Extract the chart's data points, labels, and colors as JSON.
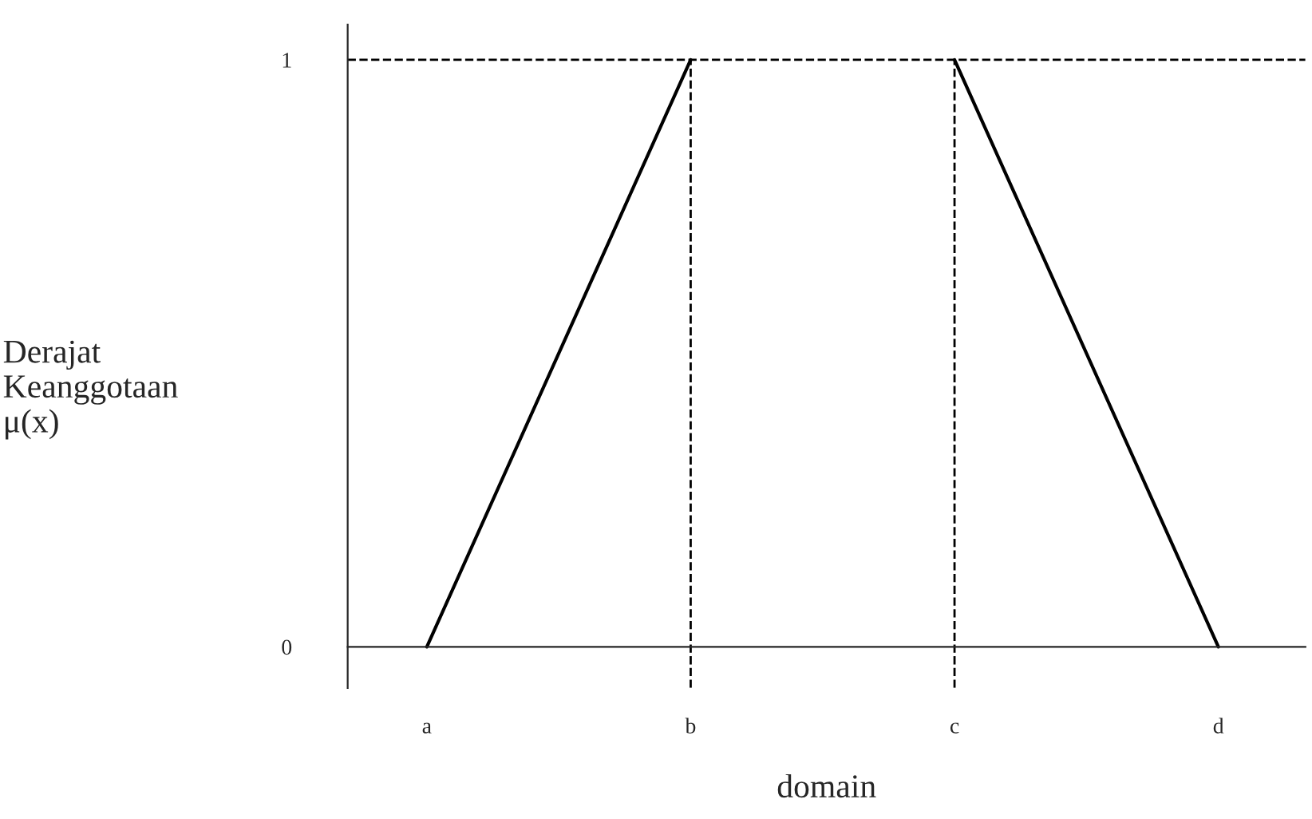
{
  "chart_data": {
    "type": "line",
    "xlabel": "domain",
    "ylabel": "Derajat\nKeanggotaan\nμ(x)",
    "categories": [
      "a",
      "b",
      "c",
      "d"
    ],
    "series": [
      {
        "color": "#000000",
        "values": [
          0,
          1,
          null,
          null
        ]
      },
      {
        "color": "#000000",
        "values": [
          null,
          null,
          1,
          0
        ]
      }
    ],
    "ylim": [
      -0.07,
      1.06
    ],
    "yticks": [
      0,
      1
    ],
    "ref_lines": [
      {
        "axis": "x",
        "value": "b",
        "color": "#000000",
        "line_style": "dashed"
      },
      {
        "axis": "x",
        "value": "c",
        "color": "#000000",
        "line_style": "dashed"
      },
      {
        "axis": "y",
        "value": 1,
        "color": "#000000",
        "line_style": "dashed"
      }
    ],
    "grid": false,
    "legend": false,
    "marker": "none",
    "line_style": "solid"
  }
}
